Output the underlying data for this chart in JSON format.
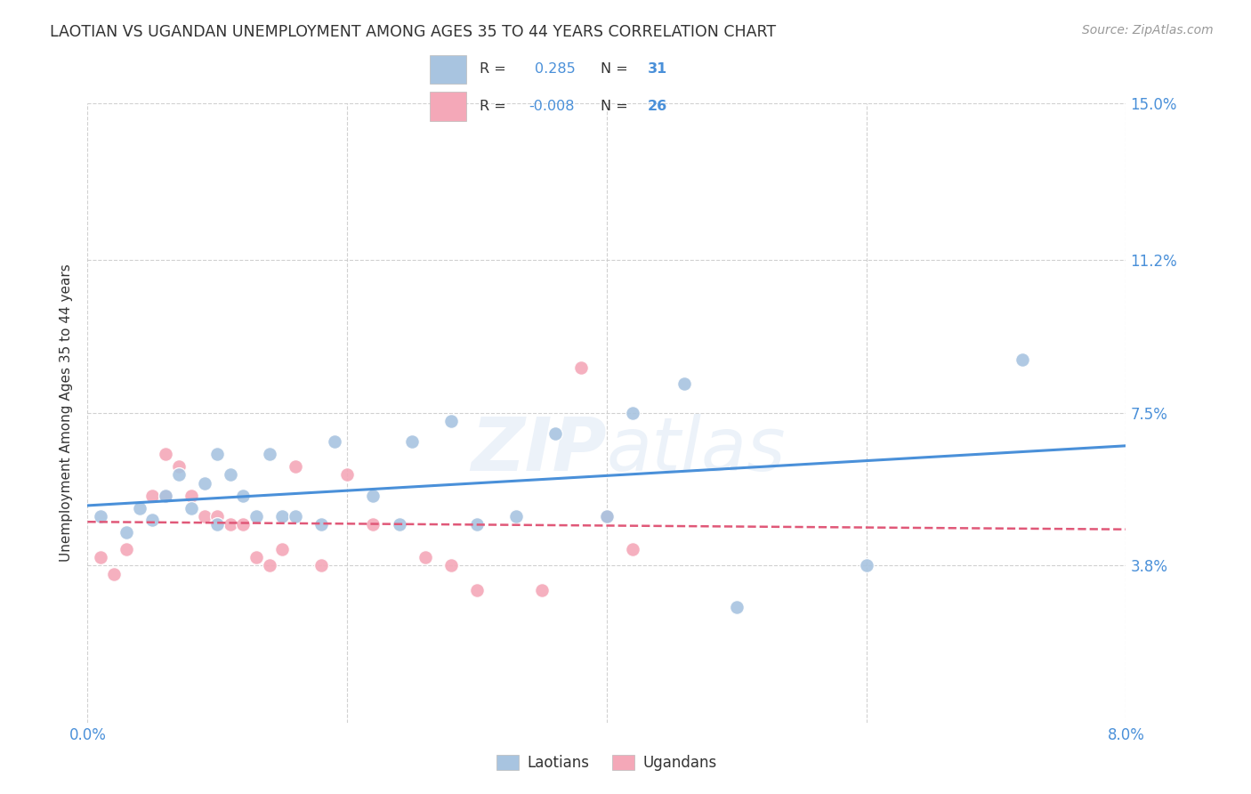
{
  "title": "LAOTIAN VS UGANDAN UNEMPLOYMENT AMONG AGES 35 TO 44 YEARS CORRELATION CHART",
  "source": "Source: ZipAtlas.com",
  "ylabel": "Unemployment Among Ages 35 to 44 years",
  "xlim": [
    0.0,
    0.08
  ],
  "ylim": [
    0.0,
    0.15
  ],
  "ytick_labels": [
    "3.8%",
    "7.5%",
    "11.2%",
    "15.0%"
  ],
  "ytick_values": [
    0.038,
    0.075,
    0.112,
    0.15
  ],
  "xtick_values": [
    0.0,
    0.02,
    0.04,
    0.06,
    0.08
  ],
  "xtick_labels": [
    "0.0%",
    "",
    "",
    "",
    "8.0%"
  ],
  "grid_color": "#cccccc",
  "background_color": "#ffffff",
  "watermark": "ZIPatlas",
  "laotian_color": "#a8c4e0",
  "ugandan_color": "#f4a8b8",
  "laotian_line_color": "#4a90d9",
  "ugandan_line_color": "#e05878",
  "title_color": "#333333",
  "axis_label_color": "#4a90d9",
  "laotian_x": [
    0.001,
    0.003,
    0.004,
    0.005,
    0.006,
    0.007,
    0.008,
    0.009,
    0.01,
    0.01,
    0.011,
    0.012,
    0.013,
    0.014,
    0.015,
    0.016,
    0.018,
    0.019,
    0.022,
    0.024,
    0.025,
    0.028,
    0.03,
    0.033,
    0.036,
    0.04,
    0.042,
    0.046,
    0.05,
    0.06,
    0.072
  ],
  "laotian_y": [
    0.05,
    0.046,
    0.052,
    0.049,
    0.055,
    0.06,
    0.052,
    0.058,
    0.048,
    0.065,
    0.06,
    0.055,
    0.05,
    0.065,
    0.05,
    0.05,
    0.048,
    0.068,
    0.055,
    0.048,
    0.068,
    0.073,
    0.048,
    0.05,
    0.07,
    0.05,
    0.075,
    0.082,
    0.028,
    0.038,
    0.088
  ],
  "ugandan_x": [
    0.001,
    0.002,
    0.003,
    0.005,
    0.006,
    0.006,
    0.007,
    0.008,
    0.009,
    0.01,
    0.011,
    0.012,
    0.013,
    0.014,
    0.015,
    0.016,
    0.018,
    0.02,
    0.022,
    0.026,
    0.028,
    0.03,
    0.035,
    0.038,
    0.04,
    0.042
  ],
  "ugandan_y": [
    0.04,
    0.036,
    0.042,
    0.055,
    0.055,
    0.065,
    0.062,
    0.055,
    0.05,
    0.05,
    0.048,
    0.048,
    0.04,
    0.038,
    0.042,
    0.062,
    0.038,
    0.06,
    0.048,
    0.04,
    0.038,
    0.032,
    0.032,
    0.086,
    0.05,
    0.042
  ],
  "marker_size": 130,
  "marker_edge_color": "#ffffff",
  "marker_edge_width": 1.0,
  "figsize": [
    14.06,
    8.92
  ],
  "dpi": 100
}
